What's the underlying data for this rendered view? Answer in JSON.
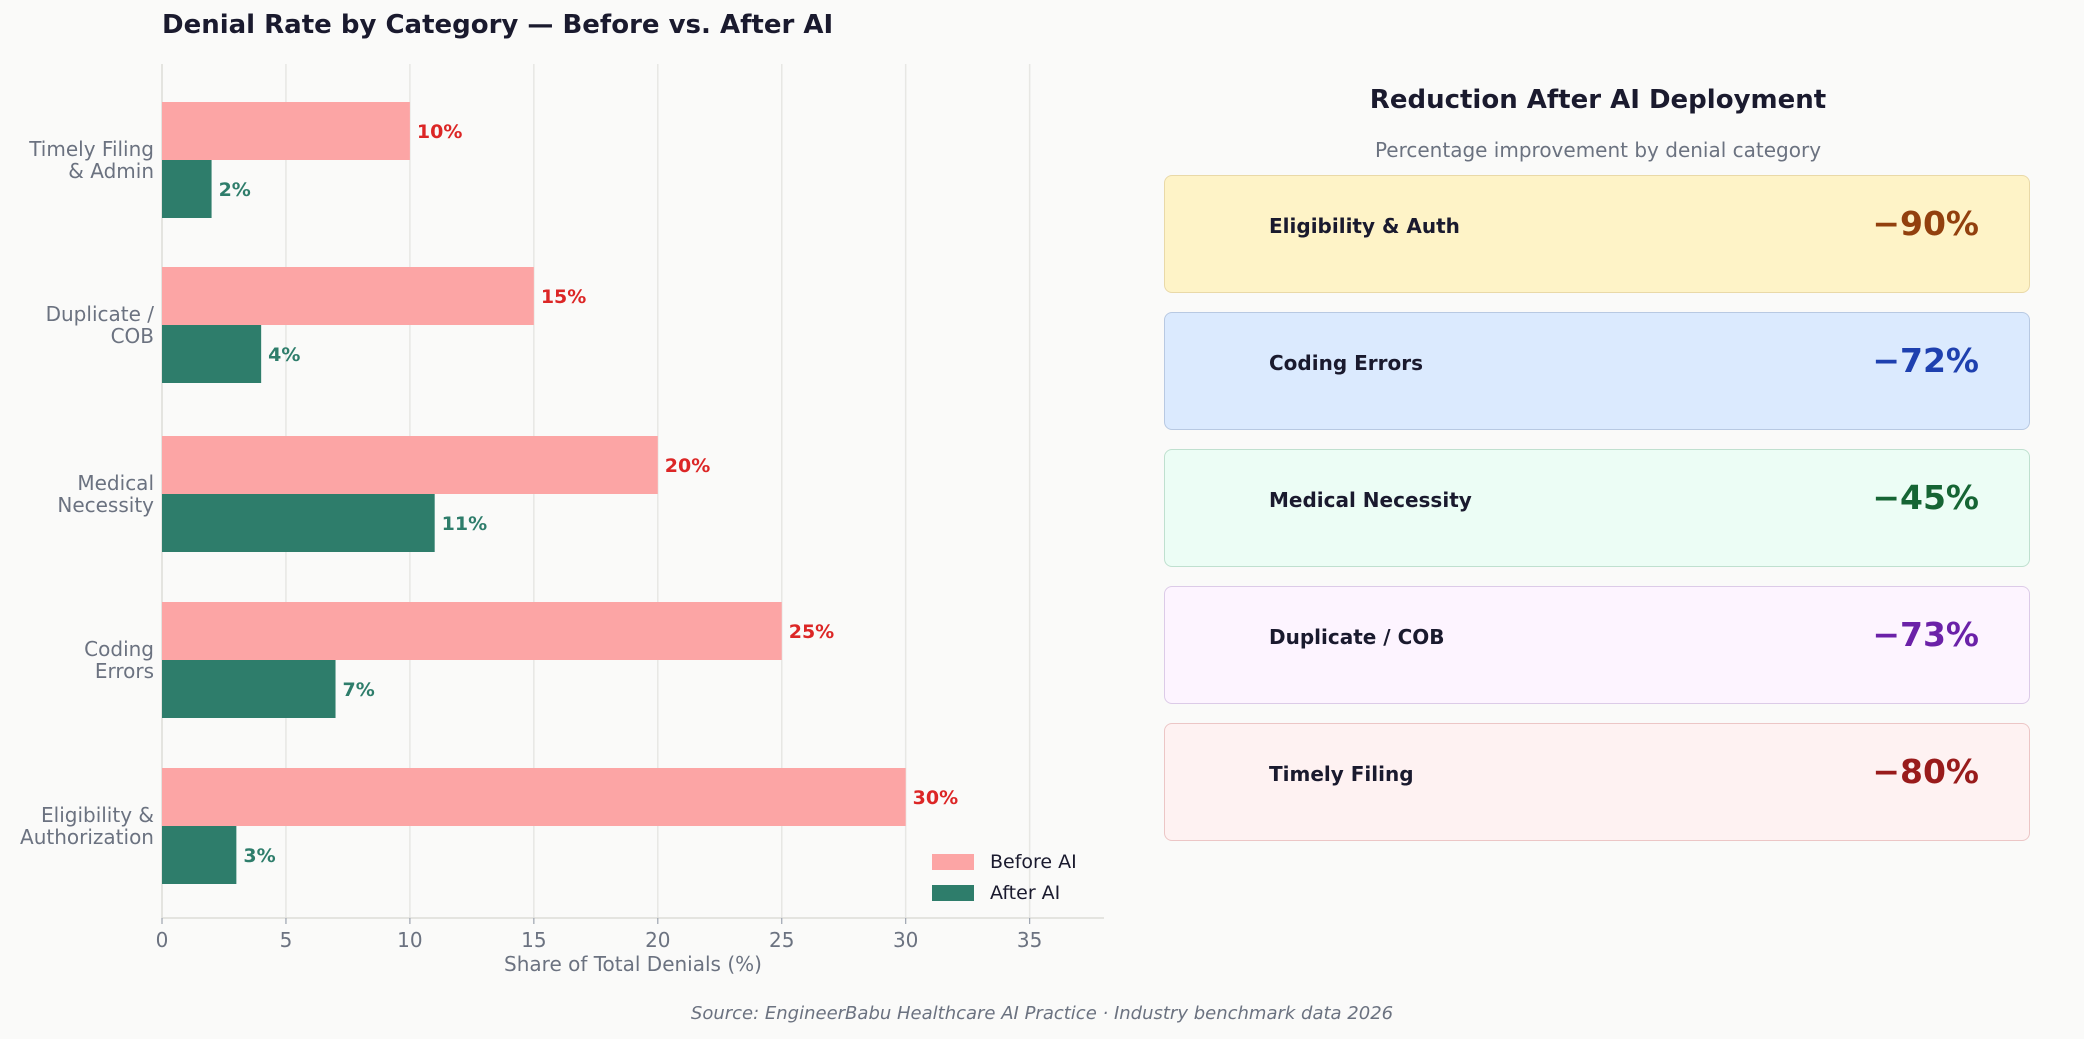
{
  "title": "Denial Rate by Category — Before vs. After AI",
  "chart_data": {
    "type": "bar",
    "orientation": "horizontal",
    "categories": [
      "Timely Filing\n& Admin",
      "Duplicate /\nCOB",
      "Medical\nNecessity",
      "Coding\nErrors",
      "Eligibility &\nAuthorization"
    ],
    "series": [
      {
        "name": "Before AI",
        "values": [
          10,
          15,
          20,
          25,
          30
        ],
        "color": "#fca5a5",
        "label_color": "#dc2626"
      },
      {
        "name": "After AI",
        "values": [
          2,
          4,
          11,
          7,
          3
        ],
        "color": "#2e7d6b",
        "label_color": "#2e7d6b"
      }
    ],
    "data_labels": {
      "Before AI": [
        "10%",
        "15%",
        "20%",
        "25%",
        "30%"
      ],
      "After AI": [
        "2%",
        "4%",
        "11%",
        "7%",
        "3%"
      ]
    },
    "xlabel": "Share of Total Denials (%)",
    "ylabel": "",
    "xlim": [
      0,
      38
    ],
    "xticks": [
      0,
      5,
      10,
      15,
      20,
      25,
      30,
      35
    ],
    "grid": "vertical",
    "legend_position": "bottom-right"
  },
  "panel": {
    "title": "Reduction After AI Deployment",
    "subtitle": "Percentage improvement by denial category",
    "cards": [
      {
        "label": "Eligibility & Auth",
        "value": "−90%",
        "bg": "#fef3c7",
        "border": "#e9d9a8",
        "color": "#92400e"
      },
      {
        "label": "Coding Errors",
        "value": "−72%",
        "bg": "#dbeafe",
        "border": "#b8c9e2",
        "color": "#1e40af"
      },
      {
        "label": "Medical Necessity",
        "value": "−45%",
        "bg": "#ecfdf5",
        "border": "#bfe0cf",
        "color": "#166534"
      },
      {
        "label": "Duplicate / COB",
        "value": "−73%",
        "bg": "#fdf4ff",
        "border": "#dccbe8",
        "color": "#6b21a8"
      },
      {
        "label": "Timely Filing",
        "value": "−80%",
        "bg": "#fef2f2",
        "border": "#ecc6c6",
        "color": "#991b1b"
      }
    ]
  },
  "source": "Source: EngineerBabu Healthcare AI Practice  ·  Industry benchmark data 2026"
}
